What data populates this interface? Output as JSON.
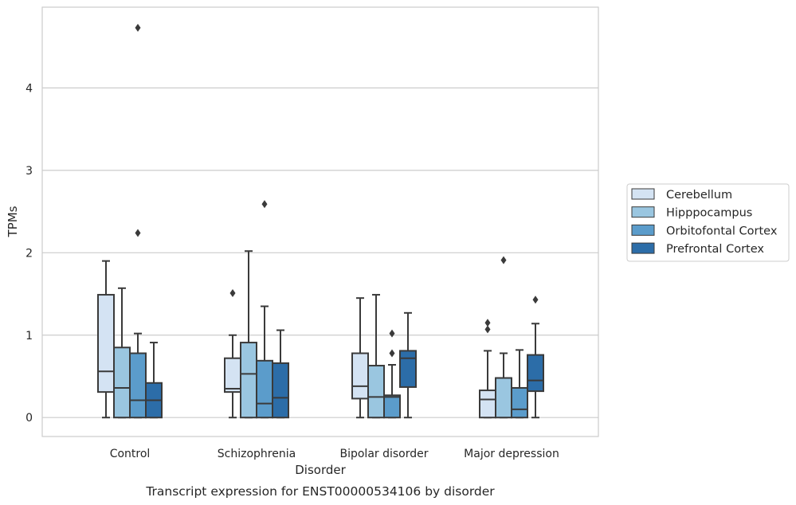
{
  "chart_data": {
    "type": "box",
    "caption": "Transcript expression for ENST00000534106 by disorder",
    "xlabel": "Disorder",
    "ylabel": "TPMs",
    "ylim": [
      -0.23,
      4.98
    ],
    "yticks": [
      0,
      1,
      2,
      3,
      4
    ],
    "grid": "horizontal",
    "legend_position": "right",
    "categories": [
      "Control",
      "Schizophrenia",
      "Bipolar disorder",
      "Major depression"
    ],
    "series": [
      {
        "name": "Cerebellum",
        "color": "#d4e3f3",
        "boxes": [
          {
            "min": 0.0,
            "q1": 0.31,
            "median": 0.56,
            "q3": 1.49,
            "max": 1.9,
            "outliers": []
          },
          {
            "min": 0.0,
            "q1": 0.31,
            "median": 0.35,
            "q3": 0.72,
            "max": 1.0,
            "outliers": [
              1.51
            ]
          },
          {
            "min": 0.0,
            "q1": 0.23,
            "median": 0.38,
            "q3": 0.78,
            "max": 1.45,
            "outliers": []
          },
          {
            "min": 0.0,
            "q1": 0.0,
            "median": 0.22,
            "q3": 0.33,
            "max": 0.81,
            "outliers": [
              1.07,
              1.15
            ]
          }
        ]
      },
      {
        "name": "Hipppocampus",
        "color": "#9ac6e0",
        "boxes": [
          {
            "min": 0.0,
            "q1": 0.0,
            "median": 0.36,
            "q3": 0.85,
            "max": 1.57,
            "outliers": []
          },
          {
            "min": 0.0,
            "q1": 0.0,
            "median": 0.53,
            "q3": 0.91,
            "max": 2.02,
            "outliers": []
          },
          {
            "min": 0.0,
            "q1": 0.0,
            "median": 0.25,
            "q3": 0.63,
            "max": 1.49,
            "outliers": []
          },
          {
            "min": 0.0,
            "q1": 0.0,
            "median": 0.48,
            "q3": 0.48,
            "max": 0.78,
            "outliers": [
              1.91
            ]
          }
        ]
      },
      {
        "name": "Orbitofontal Cortex",
        "color": "#5b9ccb",
        "boxes": [
          {
            "min": 0.0,
            "q1": 0.0,
            "median": 0.21,
            "q3": 0.78,
            "max": 1.02,
            "outliers": [
              2.24,
              4.73
            ]
          },
          {
            "min": 0.0,
            "q1": 0.0,
            "median": 0.17,
            "q3": 0.69,
            "max": 1.35,
            "outliers": [
              2.59
            ]
          },
          {
            "min": 0.0,
            "q1": 0.0,
            "median": 0.25,
            "q3": 0.27,
            "max": 0.64,
            "outliers": [
              0.78,
              1.02
            ]
          },
          {
            "min": 0.0,
            "q1": 0.0,
            "median": 0.1,
            "q3": 0.36,
            "max": 0.82,
            "outliers": []
          }
        ]
      },
      {
        "name": "Prefrontal Cortex",
        "color": "#2c6da8",
        "boxes": [
          {
            "min": 0.0,
            "q1": 0.0,
            "median": 0.21,
            "q3": 0.42,
            "max": 0.91,
            "outliers": []
          },
          {
            "min": 0.0,
            "q1": 0.0,
            "median": 0.24,
            "q3": 0.66,
            "max": 1.06,
            "outliers": []
          },
          {
            "min": 0.0,
            "q1": 0.37,
            "median": 0.72,
            "q3": 0.81,
            "max": 1.27,
            "outliers": []
          },
          {
            "min": 0.0,
            "q1": 0.32,
            "median": 0.45,
            "q3": 0.76,
            "max": 1.14,
            "outliers": [
              1.43
            ]
          }
        ]
      }
    ]
  }
}
